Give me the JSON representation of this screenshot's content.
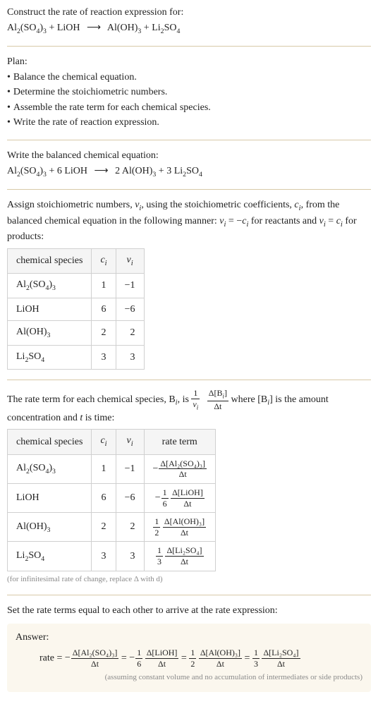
{
  "colors": {
    "text": "#222222",
    "separator": "#d8c9a8",
    "table_border": "#d0d0d0",
    "table_header_bg": "#f5f5f5",
    "footnote": "#8a8a8a",
    "answer_bg": "#fbf7ee",
    "background": "#ffffff"
  },
  "typography": {
    "body_fontsize_pt": 11,
    "footnote_fontsize_pt": 8,
    "font_family": "Georgia"
  },
  "intro": {
    "line1": "Construct the rate of reaction expression for:",
    "reaction_lhs1": "Al₂(SO₄)₃",
    "reaction_plus": " + ",
    "reaction_lhs2": "LiOH",
    "arrow": "⟶",
    "reaction_rhs1": "Al(OH)₃",
    "reaction_rhs2": "Li₂SO₄"
  },
  "plan": {
    "heading": "Plan:",
    "items": [
      "Balance the chemical equation.",
      "Determine the stoichiometric numbers.",
      "Assemble the rate term for each chemical species.",
      "Write the rate of reaction expression."
    ],
    "bullet": "•"
  },
  "balanced": {
    "heading": "Write the balanced chemical equation:",
    "lhs1_coef": "",
    "lhs1": "Al₂(SO₄)₃",
    "lhs2_coef": "6",
    "lhs2": "LiOH",
    "rhs1_coef": "2",
    "rhs1": "Al(OH)₃",
    "rhs2_coef": "3",
    "rhs2": "Li₂SO₄",
    "plus": " + ",
    "arrow": "⟶"
  },
  "stoich_para": {
    "t1": "Assign stoichiometric numbers, ",
    "nu": "ν",
    "sub_i": "i",
    "t2": ", using the stoichiometric coefficients, ",
    "c": "c",
    "t3": ", from the balanced chemical equation in the following manner: ",
    "eq_lhs": "ν",
    "eq_eq": " = −",
    "eq_rhs": "c",
    "t4": " for reactants and ",
    "eq2_lhs": "ν",
    "eq2_eq": " = ",
    "eq2_rhs": "c",
    "t5": " for products:"
  },
  "stoich_table": {
    "headers": [
      "chemical species",
      "cᵢ",
      "νᵢ"
    ],
    "rows": [
      {
        "species_html": "Al<sub>2</sub>(SO<sub>4</sub>)<sub>3</sub>",
        "c": "1",
        "nu": "−1"
      },
      {
        "species_html": "LiOH",
        "c": "6",
        "nu": "−6"
      },
      {
        "species_html": "Al(OH)<sub>3</sub>",
        "c": "2",
        "nu": "2"
      },
      {
        "species_html": "Li<sub>2</sub>SO<sub>4</sub>",
        "c": "3",
        "nu": "3"
      }
    ],
    "col_align": [
      "left",
      "center",
      "right"
    ]
  },
  "rate_para": {
    "t1": "The rate term for each chemical species, B",
    "sub_i": "i",
    "t2": ", is ",
    "frac1_num": "1",
    "nu": "ν",
    "delta": "Δ",
    "Bi": "[B",
    "Bi_close": "]",
    "dt": "Δt",
    "t3": " where [B",
    "t4": "] is the amount concentration and ",
    "tvar": "t",
    "t5": " is time:"
  },
  "rate_table": {
    "headers": [
      "chemical species",
      "cᵢ",
      "νᵢ",
      "rate term"
    ],
    "rows": [
      {
        "species_html": "Al<sub>2</sub>(SO<sub>4</sub>)<sub>3</sub>",
        "c": "1",
        "nu": "−1",
        "sign": "−",
        "coef_num": "",
        "coef_den": "",
        "d_species": "Δ[Al₂(SO₄)₃]",
        "dt": "Δt"
      },
      {
        "species_html": "LiOH",
        "c": "6",
        "nu": "−6",
        "sign": "−",
        "coef_num": "1",
        "coef_den": "6",
        "d_species": "Δ[LiOH]",
        "dt": "Δt"
      },
      {
        "species_html": "Al(OH)<sub>3</sub>",
        "c": "2",
        "nu": "2",
        "sign": "",
        "coef_num": "1",
        "coef_den": "2",
        "d_species": "Δ[Al(OH)₃]",
        "dt": "Δt"
      },
      {
        "species_html": "Li<sub>2</sub>SO<sub>4</sub>",
        "c": "3",
        "nu": "3",
        "sign": "",
        "coef_num": "1",
        "coef_den": "3",
        "d_species": "Δ[Li₂SO₄]",
        "dt": "Δt"
      }
    ]
  },
  "rate_footnote": "(for infinitesimal rate of change, replace Δ with d)",
  "set_equal": "Set the rate terms equal to each other to arrive at the rate expression:",
  "answer": {
    "heading": "Answer:",
    "rate_label": "rate = ",
    "terms": [
      {
        "sign": "−",
        "coef_num": "",
        "coef_den": "",
        "d_species": "Δ[Al₂(SO₄)₃]",
        "dt": "Δt"
      },
      {
        "sign": "−",
        "coef_num": "1",
        "coef_den": "6",
        "d_species": "Δ[LiOH]",
        "dt": "Δt"
      },
      {
        "sign": "",
        "coef_num": "1",
        "coef_den": "2",
        "d_species": "Δ[Al(OH)₃]",
        "dt": "Δt"
      },
      {
        "sign": "",
        "coef_num": "1",
        "coef_den": "3",
        "d_species": "Δ[Li₂SO₄]",
        "dt": "Δt"
      }
    ],
    "eq_join": " = ",
    "note": "(assuming constant volume and no accumulation of intermediates or side products)"
  }
}
